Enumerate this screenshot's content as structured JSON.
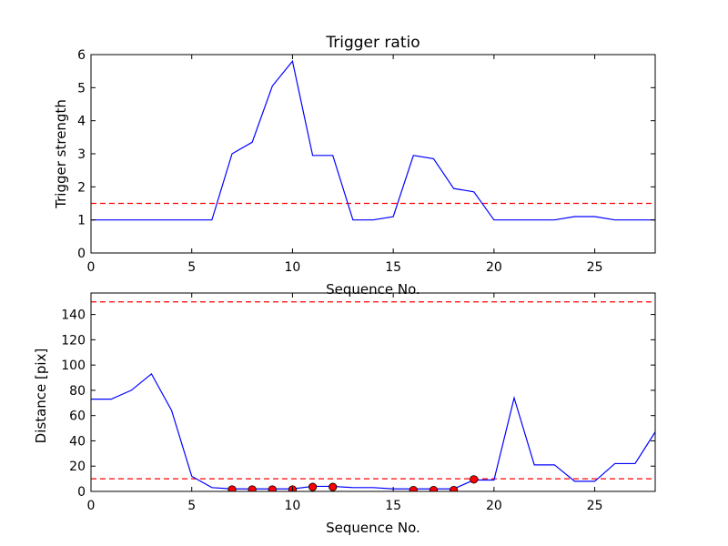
{
  "chart_data": [
    {
      "type": "line",
      "title": "Trigger ratio",
      "xlabel": "Sequence No.",
      "ylabel": "Trigger strength",
      "xlim": [
        0,
        28
      ],
      "ylim": [
        0,
        6
      ],
      "xticks": [
        0,
        5,
        10,
        15,
        20,
        25
      ],
      "yticks": [
        0,
        1,
        2,
        3,
        4,
        5,
        6
      ],
      "grid": false,
      "series": [
        {
          "color": "#0000ff",
          "style": "solid",
          "x": [
            0,
            1,
            2,
            3,
            4,
            5,
            6,
            7,
            8,
            9,
            10,
            11,
            12,
            13,
            14,
            15,
            16,
            17,
            18,
            19,
            20,
            21,
            22,
            23,
            24,
            25,
            26,
            27,
            28
          ],
          "y": [
            1,
            1,
            1,
            1,
            1,
            1,
            1,
            3,
            3.35,
            5.05,
            5.8,
            2.95,
            2.95,
            1,
            1,
            1.1,
            2.95,
            2.85,
            1.95,
            1.85,
            1,
            1,
            1,
            1,
            1.1,
            1.1,
            1,
            1,
            1
          ]
        }
      ],
      "hlines": [
        {
          "y": 1.5,
          "color": "#ff0000",
          "style": "dashed"
        }
      ]
    },
    {
      "type": "line",
      "title": "",
      "xlabel": "Sequence No.",
      "ylabel": "Distance [pix]",
      "xlim": [
        0,
        28
      ],
      "ylim": [
        0,
        157
      ],
      "xticks": [
        0,
        5,
        10,
        15,
        20,
        25
      ],
      "yticks": [
        0,
        20,
        40,
        60,
        80,
        100,
        120,
        140
      ],
      "grid": false,
      "series": [
        {
          "color": "#0000ff",
          "style": "solid",
          "x": [
            0,
            1,
            2,
            3,
            4,
            5,
            6,
            7,
            8,
            9,
            10,
            11,
            12,
            13,
            14,
            15,
            16,
            17,
            18,
            19,
            20,
            21,
            22,
            23,
            24,
            25,
            26,
            27,
            28
          ],
          "y": [
            73,
            73,
            80,
            93,
            64,
            12,
            3,
            2,
            2,
            2,
            2,
            4,
            4,
            3,
            3,
            2,
            2,
            2,
            2,
            9,
            9,
            74,
            21,
            21,
            8,
            8,
            22,
            22,
            47
          ]
        },
        {
          "color": "#ff0000",
          "style": "markers",
          "x": [
            7,
            8,
            9,
            10,
            11,
            12,
            16,
            17,
            18,
            19
          ],
          "y": [
            1.5,
            1.5,
            1.5,
            1.5,
            3.5,
            3.5,
            1,
            1,
            1,
            9.5
          ]
        }
      ],
      "hlines": [
        {
          "y": 10,
          "color": "#ff0000",
          "style": "dashed"
        },
        {
          "y": 150,
          "color": "#ff0000",
          "style": "dashed"
        }
      ]
    }
  ]
}
